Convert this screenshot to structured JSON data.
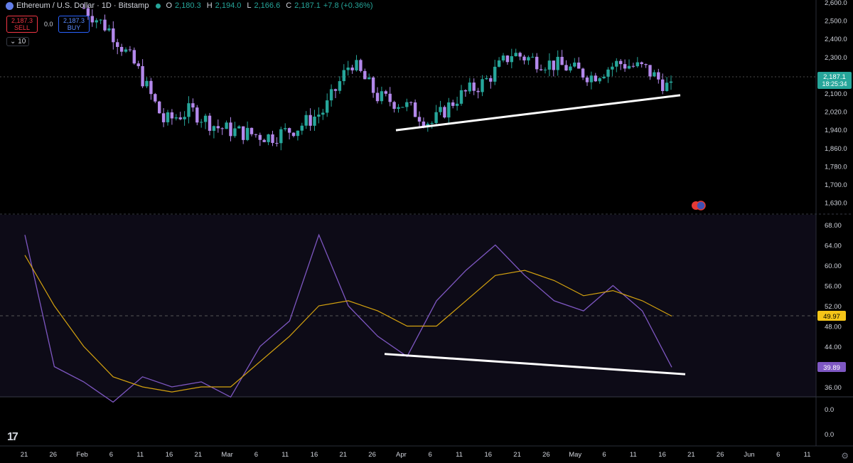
{
  "header": {
    "symbol": "Ethereum / U.S. Dollar · 1D · Bitstamp",
    "open": "2,180.3",
    "high": "2,194.0",
    "low": "2,166.6",
    "close": "2,187.1",
    "change": "+7.8 (+0.36%)",
    "sell_price": "2,187.3",
    "sell_label": "SELL",
    "buy_price": "2,187.3",
    "buy_label": "BUY",
    "spread": "0.0",
    "interval_badge": "10"
  },
  "colors": {
    "up": "#26a69a",
    "down": "#b388eb",
    "rsi": "#7e57c2",
    "rsi_ma": "#d4a20f",
    "trendline": "#ffffff",
    "bg": "#000000",
    "panel": "#0d0b17"
  },
  "price_axis": {
    "ticks": [
      "2,600.0",
      "2,500.0",
      "2,400.0",
      "2,300.0",
      "2,200.0",
      "2,100.0",
      "2,020.0",
      "1,940.0",
      "1,860.0",
      "1,780.0",
      "1,700.0",
      "1,630.0"
    ]
  },
  "last_price_label": {
    "price": "2,187.1",
    "countdown": "18:25:34"
  },
  "rsi_axis": {
    "ticks": [
      "68.00",
      "64.00",
      "60.00",
      "56.00",
      "52.00",
      "48.00",
      "44.00",
      "40.00",
      "36.00"
    ],
    "rsi_value": "39.89",
    "ma_value": "49.97"
  },
  "extra_pane_ticks": [
    "0.0",
    "0.0"
  ],
  "time_axis": [
    "21",
    "26",
    "Feb",
    "6",
    "11",
    "16",
    "21",
    "Mar",
    "6",
    "11",
    "16",
    "21",
    "26",
    "Apr",
    "6",
    "11",
    "16",
    "21",
    "26",
    "May",
    "6",
    "11",
    "16",
    "21",
    "26",
    "Jun",
    "6",
    "11"
  ],
  "chart_data": {
    "type": "candlestick",
    "x": [
      "Jan 21",
      "Jan 26",
      "Feb",
      "Feb 6",
      "Feb 11",
      "Feb 16",
      "Feb 21",
      "Mar",
      "Mar 6",
      "Mar 11",
      "Mar 16",
      "Mar 21",
      "Mar 26",
      "Apr",
      "Apr 6",
      "Apr 11",
      "Apr 16",
      "Apr 21",
      "Apr 26",
      "May",
      "May 6",
      "May 11",
      "May 16"
    ],
    "close": [
      2620,
      2500,
      2300,
      2020,
      2080,
      1990,
      1960,
      1940,
      1990,
      2080,
      2340,
      2150,
      2110,
      2010,
      2150,
      2230,
      2380,
      2340,
      2310,
      2260,
      2330,
      2300,
      2187.1
    ],
    "ylim": [
      1600,
      2640
    ],
    "rsi": [
      66,
      40,
      37,
      33,
      38,
      36,
      37,
      34,
      44,
      49,
      66,
      52,
      46,
      42,
      53,
      59,
      64,
      58,
      53,
      51,
      56,
      51,
      39.89
    ],
    "rsi_ma": [
      62,
      52,
      44,
      38,
      36,
      35,
      36,
      36,
      41,
      46,
      52,
      53,
      51,
      48,
      48,
      53,
      58,
      59,
      57,
      54,
      55,
      53,
      49.97
    ],
    "rsi_ylim": [
      34,
      70
    ],
    "trendlines": [
      {
        "pane": "price",
        "from": [
          "Mar 28",
          1975
        ],
        "to": [
          "May 17",
          2160
        ]
      },
      {
        "pane": "rsi",
        "from": [
          "Mar 26",
          42.5
        ],
        "to": [
          "May 18",
          38.5
        ]
      }
    ]
  }
}
